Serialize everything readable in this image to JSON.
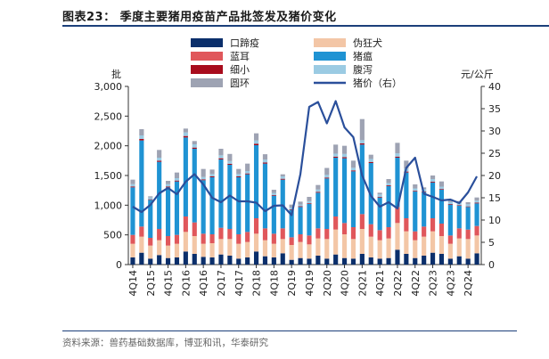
{
  "figure": {
    "title": "图表23：  季度主要猪用疫苗产品批签发及猪价变化",
    "source": "资料来源：兽药基础数据库，博亚和讯，华泰研究"
  },
  "chart_data": {
    "type": "bar",
    "stacked": true,
    "left_axis_label": "批",
    "right_axis_label": "元/公斤",
    "ylim_left": [
      0,
      3000
    ],
    "yticks_left": [
      "0",
      "500",
      "1,000",
      "1,500",
      "2,000",
      "2,500",
      "3,000"
    ],
    "ylim_right": [
      0,
      40
    ],
    "yticks_right": [
      "0",
      "5",
      "10",
      "15",
      "20",
      "25",
      "30",
      "35",
      "40"
    ],
    "tick_categories": [
      "4Q14",
      "2Q15",
      "4Q15",
      "2Q16",
      "4Q16",
      "2Q17",
      "4Q17",
      "2Q18",
      "4Q18",
      "2Q19",
      "4Q19",
      "2Q20",
      "4Q20",
      "2Q21",
      "4Q21",
      "2Q22",
      "4Q22",
      "2Q23",
      "4Q23",
      "2Q24"
    ],
    "categories": [
      "4Q14",
      "1Q15",
      "2Q15",
      "3Q15",
      "4Q15",
      "1Q16",
      "2Q16",
      "3Q16",
      "4Q16",
      "1Q17",
      "2Q17",
      "3Q17",
      "4Q17",
      "1Q18",
      "2Q18",
      "3Q18",
      "4Q18",
      "1Q19",
      "2Q19",
      "3Q19",
      "4Q19",
      "1Q20",
      "2Q20",
      "3Q20",
      "4Q20",
      "1Q21",
      "2Q21",
      "3Q21",
      "4Q21",
      "1Q22",
      "2Q22",
      "3Q22",
      "4Q22",
      "1Q23",
      "2Q23",
      "3Q23",
      "4Q23",
      "1Q24",
      "2Q24",
      "3Q24"
    ],
    "series": [
      {
        "name": "口蹄疫",
        "color": "#0b2f6b",
        "values": [
          120,
          200,
          100,
          160,
          110,
          120,
          220,
          180,
          130,
          120,
          170,
          150,
          100,
          120,
          220,
          140,
          120,
          190,
          80,
          110,
          100,
          150,
          100,
          170,
          110,
          100,
          180,
          120,
          100,
          110,
          250,
          180,
          110,
          150,
          200,
          180,
          100,
          140,
          100,
          190
        ]
      },
      {
        "name": "伪狂犬",
        "color": "#f3c6a6",
        "values": [
          230,
          270,
          220,
          250,
          210,
          230,
          330,
          300,
          220,
          240,
          260,
          280,
          250,
          260,
          300,
          270,
          230,
          240,
          250,
          270,
          240,
          290,
          330,
          420,
          400,
          330,
          420,
          350,
          310,
          330,
          450,
          380,
          300,
          320,
          360,
          300,
          250,
          300,
          330,
          300
        ]
      },
      {
        "name": "蓝耳",
        "color": "#e0575b",
        "values": [
          150,
          170,
          130,
          190,
          160,
          150,
          260,
          230,
          170,
          150,
          190,
          170,
          160,
          170,
          260,
          200,
          170,
          180,
          130,
          130,
          150,
          170,
          170,
          220,
          190,
          200,
          250,
          210,
          170,
          190,
          270,
          220,
          150,
          170,
          220,
          210,
          140,
          170,
          160,
          160
        ]
      },
      {
        "name": "猪瘟",
        "color": "#1f93d3",
        "values": [
          800,
          1450,
          640,
          1130,
          820,
          900,
          1330,
          1240,
          900,
          960,
          1150,
          1080,
          960,
          970,
          1230,
          1090,
          640,
          820,
          460,
          460,
          530,
          600,
          850,
          990,
          1090,
          940,
          1170,
          1030,
          550,
          690,
          830,
          770,
          670,
          580,
          600,
          570,
          520,
          380,
          380,
          380
        ]
      },
      {
        "name": "细小",
        "color": "#a80c1d",
        "values": [
          15,
          25,
          10,
          20,
          15,
          15,
          25,
          20,
          15,
          15,
          20,
          18,
          15,
          15,
          25,
          18,
          12,
          15,
          10,
          12,
          12,
          14,
          15,
          18,
          18,
          15,
          20,
          18,
          12,
          14,
          18,
          16,
          12,
          12,
          14,
          12,
          10,
          10,
          10,
          12
        ]
      },
      {
        "name": "腹泻",
        "color": "#9bcbe3",
        "values": [
          40,
          60,
          30,
          50,
          40,
          40,
          60,
          55,
          40,
          40,
          50,
          45,
          40,
          40,
          55,
          50,
          35,
          40,
          30,
          30,
          35,
          40,
          45,
          50,
          55,
          45,
          55,
          50,
          40,
          40,
          55,
          50,
          40,
          40,
          45,
          40,
          35,
          35,
          35,
          35
        ]
      },
      {
        "name": "圆环",
        "color": "#9ea3b3",
        "values": [
          75,
          105,
          20,
          130,
          55,
          95,
          65,
          55,
          135,
          75,
          110,
          120,
          85,
          125,
          120,
          90,
          53,
          35,
          50,
          48,
          73,
          76,
          117,
          152,
          137,
          120,
          355,
          72,
          28,
          66,
          177,
          134,
          68,
          28,
          61,
          88,
          45,
          35,
          35,
          53
        ]
      }
    ],
    "line": {
      "name": "猪价（右）",
      "color": "#2a4f9b",
      "axis": "right",
      "values": [
        13.0,
        11.8,
        13.4,
        16.0,
        17.2,
        15.8,
        18.6,
        20.3,
        18.0,
        15.0,
        14.0,
        15.5,
        14.2,
        14.2,
        13.9,
        12.0,
        13.2,
        13.3,
        11.1,
        20.3,
        35.4,
        36.5,
        31.7,
        36.7,
        30.8,
        28.6,
        20.0,
        15.4,
        13.0,
        14.0,
        12.6,
        21.7,
        24.0,
        15.9,
        15.2,
        14.4,
        14.6,
        13.8,
        16.2,
        19.8
      ]
    },
    "legend": {
      "items": [
        "口蹄疫",
        "伪狂犬",
        "蓝耳",
        "猪瘟",
        "细小",
        "腹泻",
        "圆环",
        "猪价（右）"
      ],
      "placement": "top-left, two columns"
    }
  }
}
